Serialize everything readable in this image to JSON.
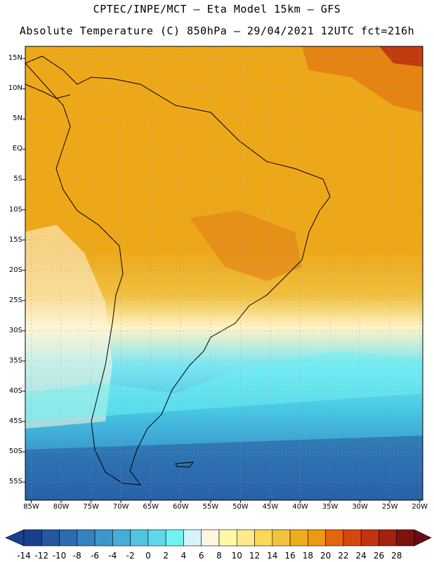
{
  "header": {
    "line1": "CPTEC/INPE/MCT –  Eta Model 15km – GFS",
    "line2": "Absolute Temperature (C) 850hPa – 29/04/2021 12UTC fct=216h"
  },
  "map": {
    "lat_labels": [
      "15N",
      "10N",
      "5N",
      "EQ",
      "5S",
      "10S",
      "15S",
      "20S",
      "25S",
      "30S",
      "35S",
      "40S",
      "45S",
      "50S",
      "55S"
    ],
    "lon_labels": [
      "85W",
      "80W",
      "75W",
      "70W",
      "65W",
      "60W",
      "55W",
      "50W",
      "45W",
      "40W",
      "35W",
      "30W",
      "25W",
      "20W"
    ],
    "extent": {
      "lon_min": -86,
      "lon_max": -19.5,
      "lat_min": -58,
      "lat_max": 17
    }
  },
  "colorbar": {
    "labels": [
      "-14",
      "-12",
      "-10",
      "-8",
      "-6",
      "-4",
      "-2",
      "0",
      "2",
      "4",
      "6",
      "8",
      "10",
      "12",
      "14",
      "16",
      "18",
      "20",
      "22",
      "24",
      "26",
      "28"
    ],
    "colors": [
      "#1b3f8f",
      "#24579f",
      "#2c6cb1",
      "#3482c0",
      "#3b97cc",
      "#45aed8",
      "#52c4e2",
      "#5fd8ea",
      "#6ef2f2",
      "#d4f6fb",
      "#fff6e2",
      "#fff9a6",
      "#ffe98a",
      "#fbd75a",
      "#f2c33e",
      "#ecae1c",
      "#eb9a12",
      "#e3650f",
      "#d4480f",
      "#c3330f",
      "#a3210d",
      "#7f120c"
    ]
  }
}
